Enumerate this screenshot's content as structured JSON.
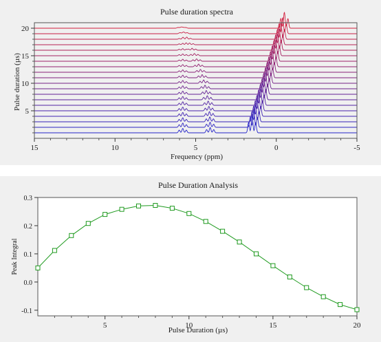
{
  "chart_data": [
    {
      "type": "line",
      "title": "Pulse duration spectra",
      "xlabel": "Frequency (ppm)",
      "ylabel": "Pulse duration (µs)",
      "x_reversed": true,
      "xlim": [
        15,
        -5
      ],
      "xticks": [
        15,
        10,
        5,
        0,
        -5
      ],
      "ylim": [
        0,
        21
      ],
      "yticks": [
        5,
        10,
        15,
        20
      ],
      "grid": false,
      "legend": "none",
      "trace_count": 20,
      "trace_color_start": "#2323c8",
      "trace_color_end": "#d21e3c",
      "peaks": [
        {
          "center_ppm": 5.8,
          "height": [
            0.25,
            0.05
          ]
        },
        {
          "center_ppm": 4.1,
          "height": [
            0.3,
            0.06
          ]
        },
        {
          "center_ppm": 1.5,
          "height": [
            0.95,
            0.9
          ]
        }
      ]
    },
    {
      "type": "line",
      "title": "Pulse Duration Analysis",
      "xlabel": "Pulse Duration (µs)",
      "ylabel": "Peak Integral",
      "xlim": [
        1,
        20
      ],
      "ylim": [
        -0.12,
        0.3
      ],
      "xticks": [
        5,
        10,
        15,
        20
      ],
      "yticks": [
        -0.1,
        0.0,
        0.1,
        0.2,
        0.3
      ],
      "grid": false,
      "legend": "none",
      "series": [
        {
          "color": "#1e9a1e",
          "marker": "square",
          "x": [
            1,
            2,
            3,
            4,
            5,
            6,
            7,
            8,
            9,
            10,
            11,
            12,
            13,
            14,
            15,
            16,
            17,
            18,
            19,
            20
          ],
          "values": [
            0.05,
            0.112,
            0.165,
            0.208,
            0.24,
            0.258,
            0.27,
            0.272,
            0.262,
            0.243,
            0.215,
            0.18,
            0.142,
            0.1,
            0.058,
            0.018,
            -0.02,
            -0.052,
            -0.08,
            -0.098
          ]
        }
      ]
    }
  ]
}
